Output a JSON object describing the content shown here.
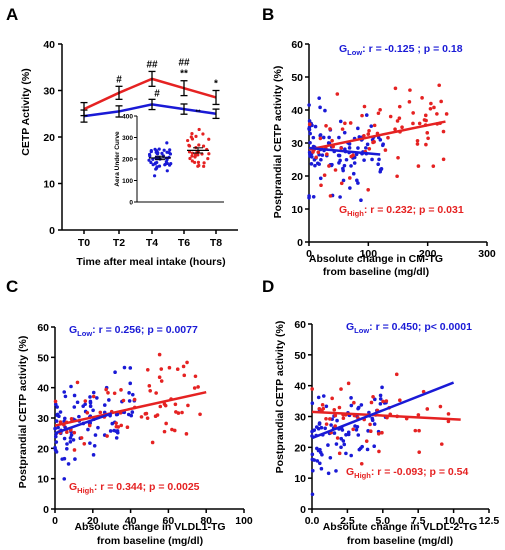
{
  "colors": {
    "low": "#1a1ad6",
    "high": "#e52222",
    "black": "#000000"
  },
  "chart_data": [
    {
      "panel": "A",
      "type": "line",
      "categories": [
        "T0",
        "T2",
        "T4",
        "T6",
        "T8"
      ],
      "ylabel": "CETP Activity (%)",
      "xlabel": "Time after meal intake (hours)",
      "ylim": [
        0,
        40
      ],
      "yticks": [
        "0",
        "10",
        "20",
        "30",
        "40"
      ],
      "series": [
        {
          "color": "blue",
          "values": [
            24.5,
            25.5,
            27.0,
            26.0,
            25.0
          ],
          "err": [
            1.3,
            1.2,
            1.1,
            1.1,
            1.0
          ]
        },
        {
          "color": "red",
          "values": [
            26.0,
            29.5,
            32.5,
            30.5,
            28.5
          ],
          "err": [
            1.4,
            1.4,
            1.6,
            1.6,
            1.5
          ]
        }
      ],
      "marks": [
        {
          "cat": "T2",
          "text": "#",
          "row": 1
        },
        {
          "cat": "T4",
          "text": "##",
          "row": 1
        },
        {
          "cat": "T4",
          "text": "#",
          "row": 0
        },
        {
          "cat": "T6",
          "text": "##",
          "row": 2
        },
        {
          "cat": "T6",
          "text": "**",
          "row": 1
        },
        {
          "cat": "T8",
          "text": "*",
          "row": 1
        }
      ],
      "inset": {
        "ylabel": "Aera Under Curve",
        "ylim": [
          0,
          400
        ],
        "yticks": [
          "0",
          "100",
          "200",
          "300",
          "400"
        ],
        "marks": [
          "**"
        ],
        "groups": [
          {
            "color": "blue",
            "mean": 205,
            "sem": 8
          },
          {
            "color": "red",
            "mean": 240,
            "sem": 12
          }
        ]
      }
    },
    {
      "panel": "B",
      "type": "scatter",
      "ylabel": "Postprandial CETP activity  (%)",
      "xlabel": "Absolute change in CM-TG",
      "xlabel2": "from baseline (mg/dl)",
      "xlim": [
        0,
        300
      ],
      "ylim": [
        0,
        60
      ],
      "xticks": [
        "0",
        "100",
        "200",
        "300"
      ],
      "yticks": [
        "0",
        "10",
        "20",
        "30",
        "40",
        "50",
        "60"
      ],
      "annotations": {
        "low": {
          "g": "G",
          "sub": "Low",
          "stat": ": r = -0.125 ; p = 0.18"
        },
        "high": {
          "g": "G",
          "sub": "High",
          "stat": ": r = 0.232; p = 0.031"
        }
      },
      "fits": {
        "low": {
          "x": [
            0,
            120
          ],
          "y": [
            28.5,
            26.5
          ]
        },
        "high": {
          "x": [
            0,
            230
          ],
          "y": [
            28.0,
            36.5
          ]
        }
      }
    },
    {
      "panel": "C",
      "type": "scatter",
      "ylabel": "Postprandial CETP activity  (%)",
      "xlabel": "Absolute change in VLDL1-TG",
      "xlabel2": "from baseline (mg/dl)",
      "xlim": [
        0,
        100
      ],
      "ylim": [
        0,
        60
      ],
      "xticks": [
        "0",
        "20",
        "40",
        "60",
        "80",
        "100"
      ],
      "yticks": [
        "0",
        "10",
        "20",
        "30",
        "40",
        "50",
        "60"
      ],
      "annotations": {
        "low": {
          "g": "G",
          "sub": "Low",
          "stat": ": r = 0.256; p = 0.0077"
        },
        "high": {
          "g": "G",
          "sub": "High",
          "stat": ": r = 0.344; p = 0.0025"
        }
      },
      "fits": {
        "low": {
          "x": [
            0,
            30
          ],
          "y": [
            25.0,
            31.5
          ]
        },
        "high": {
          "x": [
            0,
            80
          ],
          "y": [
            27.5,
            38.5
          ]
        }
      }
    },
    {
      "panel": "D",
      "type": "scatter",
      "ylabel": "Postprandial CETP activity  (%)",
      "xlabel": "Absolute change in VLDL-2-TG",
      "xlabel2": "from baseline (mg/dl)",
      "xlim": [
        0,
        12.5
      ],
      "ylim": [
        0,
        60
      ],
      "xticks": [
        "0.0",
        "2.5",
        "5.0",
        "7.5",
        "10.0",
        "12.5"
      ],
      "yticks": [
        "0",
        "10",
        "20",
        "30",
        "40",
        "50",
        "60"
      ],
      "annotations": {
        "low": {
          "g": "G",
          "sub": "Low",
          "stat": ": r = 0.450; p< 0.0001"
        },
        "high": {
          "g": "G",
          "sub": "High",
          "stat": ": r = -0.093; p = 0.54"
        }
      },
      "fits": {
        "low": {
          "x": [
            0,
            10
          ],
          "y": [
            23.0,
            41.0
          ]
        },
        "high": {
          "x": [
            0,
            10.5
          ],
          "y": [
            31.5,
            29.0
          ]
        }
      }
    }
  ]
}
